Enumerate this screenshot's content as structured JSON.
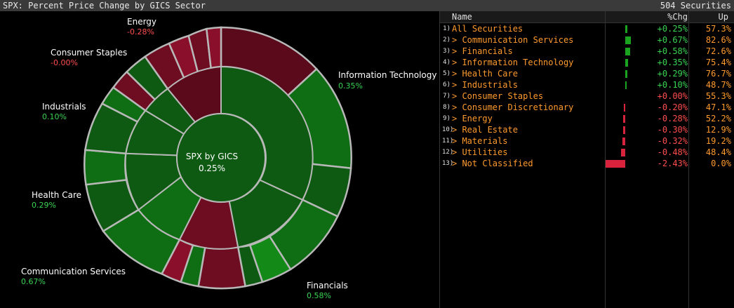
{
  "header": {
    "title": "SPX: Percent Price Change by GICS Sector",
    "count": "504 Securities"
  },
  "center": {
    "title": "SPX by GICS",
    "value": "0.25%"
  },
  "sunburst_labels": [
    {
      "name": "Information Technology",
      "value": "0.35%",
      "sign": "pos"
    },
    {
      "name": "Energy",
      "value": "-0.28%",
      "sign": "neg"
    },
    {
      "name": "Consumer Staples",
      "value": "-0.00%",
      "sign": "neg"
    },
    {
      "name": "Industrials",
      "value": "0.10%",
      "sign": "pos"
    },
    {
      "name": "Health Care",
      "value": "0.29%",
      "sign": "pos"
    },
    {
      "name": "Communication Services",
      "value": "0.67%",
      "sign": "pos"
    },
    {
      "name": "Financials",
      "value": "0.58%",
      "sign": "pos"
    }
  ],
  "colors": {
    "green_dark": "#0e5a12",
    "green_mid": "#0f6e14",
    "green_bright": "#138a18",
    "red_dark": "#5a0a1a",
    "red_mid": "#6e0c22",
    "red_bright": "#8a0f2a",
    "bar_pos": "#1aa31f",
    "bar_neg": "#d9223c"
  },
  "table": {
    "columns": {
      "name": "Name",
      "chg": "%Chg",
      "up": "Up"
    },
    "rows": [
      {
        "num": "1)",
        "name": "All Securities",
        "chg": "+0.25%",
        "up": "57.3%",
        "v": 0.25
      },
      {
        "num": "2)",
        "name": "> Communication Services",
        "chg": "+0.67%",
        "up": "82.6%",
        "v": 0.67
      },
      {
        "num": "3)",
        "name": "> Financials",
        "chg": "+0.58%",
        "up": "72.6%",
        "v": 0.58
      },
      {
        "num": "4)",
        "name": "> Information Technology",
        "chg": "+0.35%",
        "up": "75.4%",
        "v": 0.35
      },
      {
        "num": "5)",
        "name": "> Health Care",
        "chg": "+0.29%",
        "up": "76.7%",
        "v": 0.29
      },
      {
        "num": "6)",
        "name": "> Industrials",
        "chg": "+0.10%",
        "up": "48.7%",
        "v": 0.1
      },
      {
        "num": "7)",
        "name": "> Consumer Staples",
        "chg": "+0.00%",
        "up": "55.3%",
        "v": 0.0
      },
      {
        "num": "8)",
        "name": "> Consumer Discretionary",
        "chg": "-0.20%",
        "up": "47.1%",
        "v": -0.2
      },
      {
        "num": "9)",
        "name": "> Energy",
        "chg": "-0.28%",
        "up": "52.2%",
        "v": -0.28
      },
      {
        "num": "10)",
        "name": "> Real Estate",
        "chg": "-0.30%",
        "up": "12.9%",
        "v": -0.3
      },
      {
        "num": "11)",
        "name": "> Materials",
        "chg": "-0.32%",
        "up": "19.2%",
        "v": -0.32
      },
      {
        "num": "12)",
        "name": "> Utilities",
        "chg": "-0.48%",
        "up": "48.4%",
        "v": -0.48
      },
      {
        "num": "13)",
        "name": "> Not Classified",
        "chg": "-2.43%",
        "up": "0.0%",
        "v": -2.43
      }
    ]
  }
}
